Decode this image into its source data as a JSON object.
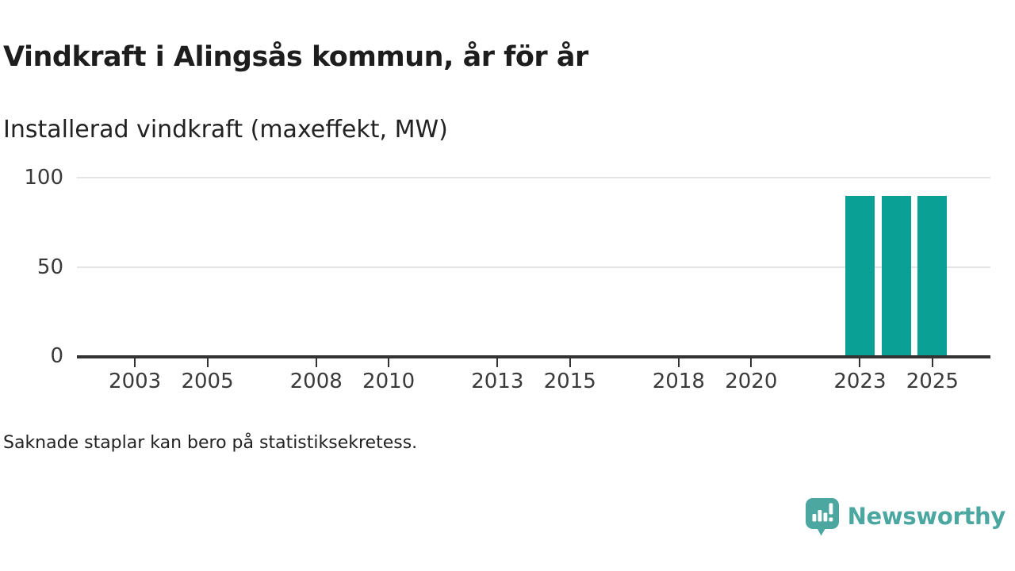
{
  "header": {
    "title": "Vindkraft i Alingsås kommun, år för år",
    "subtitle": "Installerad vindkraft (maxeffekt, MW)"
  },
  "chart_data": {
    "type": "bar",
    "title": "Vindkraft i Alingsås kommun, år för år",
    "subtitle": "Installerad vindkraft (maxeffekt, MW)",
    "ylabel": "maxeffekt, MW",
    "series": [
      {
        "name": "Installerad vindkraft (maxeffekt, MW)",
        "points": [
          {
            "year": 2023,
            "value": 90
          },
          {
            "year": 2024,
            "value": 90
          },
          {
            "year": 2025,
            "value": 90
          }
        ]
      }
    ],
    "x_tick_years": [
      2003,
      2005,
      2008,
      2010,
      2013,
      2015,
      2018,
      2020,
      2023,
      2025
    ],
    "y_ticks": [
      0,
      50,
      100
    ],
    "x_domain": [
      2001.4,
      2026.6
    ],
    "y_domain": [
      0,
      100
    ],
    "grid": "horizontal-only",
    "legend": "none",
    "bar_color": "#0aa096",
    "note": "Saknade staplar kan bero på statistiksekretess."
  },
  "footer": {
    "note": "Saknade staplar kan bero på statistiksekretess.",
    "brand": "Newsworthy"
  },
  "icons": {
    "brand_logo": "newsworthy-speech-bubble-bar-chart-icon"
  },
  "colors": {
    "bar": "#0aa096",
    "brand": "#4ba7a0",
    "axis_line": "#333333",
    "grid_line": "#e4e4e4",
    "title_text": "#1d1d1d",
    "axis_text": "#3a3a3a",
    "background": "#ffffff"
  }
}
